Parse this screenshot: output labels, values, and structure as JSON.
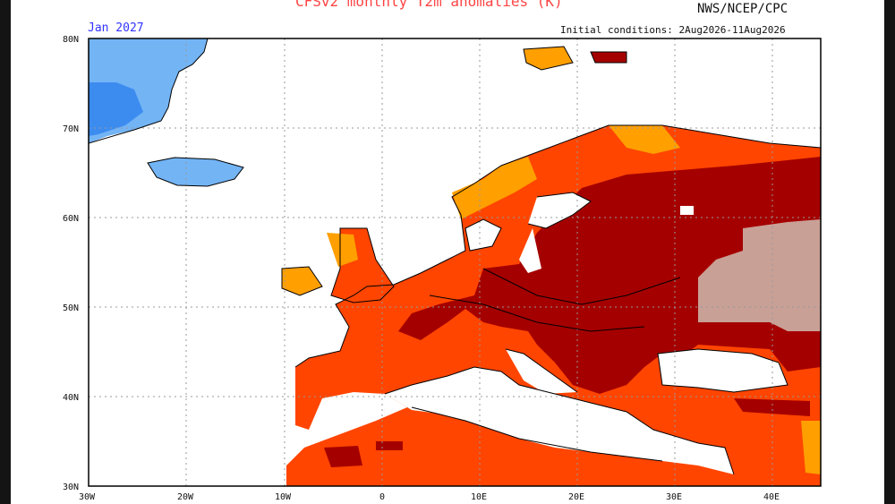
{
  "header": {
    "title": "CFSv2 monthly T2m anomalies (K)",
    "agency": "NWS/NCEP/CPC",
    "month": "Jan 2027",
    "initial_conditions": "Initial conditions: 2Aug2026-11Aug2026"
  },
  "axes": {
    "lat_labels": [
      "80N",
      "70N",
      "60N",
      "50N",
      "40N",
      "30N"
    ],
    "lon_labels": [
      "30W",
      "20W",
      "10W",
      "0",
      "10E",
      "20E",
      "30E",
      "40E"
    ]
  },
  "colors": {
    "light_blue": "#73b4f5",
    "blue": "#3c8cf0",
    "orange": "#ff9f00",
    "orange_red": "#ff4500",
    "dark_red": "#a50000",
    "pink_brown": "#c8a096",
    "land_outline": "#000000"
  }
}
